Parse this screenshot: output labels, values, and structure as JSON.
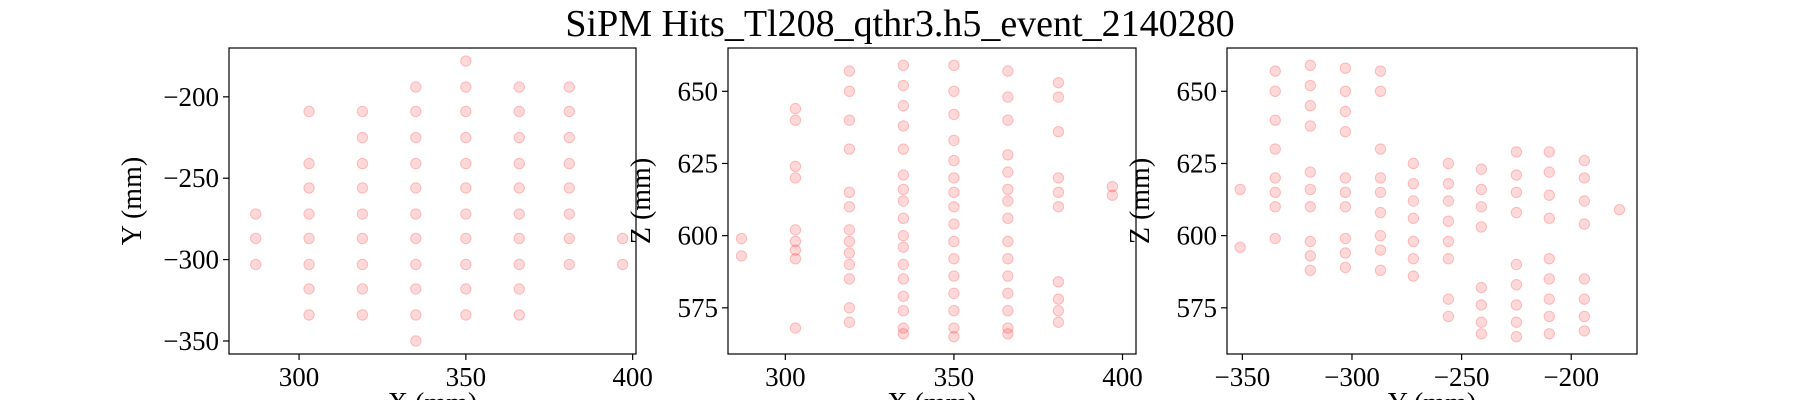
{
  "title": "SiPM Hits_Tl208_qthr3.h5_event_2140280",
  "chart_data": [
    {
      "type": "scatter",
      "xlabel": "X (mm)",
      "ylabel": "Y (mm)",
      "color": "#ff0000",
      "alpha": 0.15,
      "xlim": [
        279,
        401
      ],
      "ylim": [
        -358,
        -170
      ],
      "xticks": [
        300,
        350,
        400
      ],
      "yticks": [
        {
          "value": -200,
          "label": "−200"
        },
        {
          "value": -250,
          "label": "−250"
        },
        {
          "value": -300,
          "label": "−300"
        },
        {
          "value": -350,
          "label": "−350"
        }
      ],
      "x": [
        287,
        287,
        287,
        303,
        303,
        303,
        303,
        303,
        303,
        303,
        303,
        319,
        319,
        319,
        319,
        319,
        319,
        319,
        319,
        319,
        335,
        335,
        335,
        335,
        335,
        335,
        335,
        335,
        335,
        335,
        335,
        350,
        350,
        350,
        350,
        350,
        350,
        350,
        350,
        350,
        350,
        350,
        366,
        366,
        366,
        366,
        366,
        366,
        366,
        366,
        366,
        366,
        381,
        381,
        381,
        381,
        381,
        381,
        381,
        381,
        397,
        397
      ],
      "y": [
        -272,
        -287,
        -303,
        -209,
        -241,
        -256,
        -272,
        -287,
        -303,
        -318,
        -334,
        -209,
        -225,
        -241,
        -256,
        -272,
        -287,
        -303,
        -318,
        -334,
        -194,
        -209,
        -225,
        -241,
        -256,
        -272,
        -287,
        -303,
        -318,
        -334,
        -350,
        -178,
        -194,
        -209,
        -225,
        -241,
        -256,
        -272,
        -287,
        -303,
        -318,
        -334,
        -194,
        -209,
        -225,
        -241,
        -256,
        -272,
        -287,
        -303,
        -318,
        -334,
        -194,
        -209,
        -225,
        -241,
        -256,
        -272,
        -287,
        -303,
        -287,
        -303
      ]
    },
    {
      "type": "scatter",
      "xlabel": "X (mm)",
      "ylabel": "Z (mm)",
      "color": "#ff0000",
      "alpha": 0.15,
      "xlim": [
        283,
        404
      ],
      "ylim": [
        559,
        665
      ],
      "xticks": [
        300,
        350,
        400
      ],
      "yticks": [
        575,
        600,
        625,
        650
      ],
      "x": [
        287,
        287,
        303,
        303,
        303,
        303,
        303,
        303,
        303,
        303,
        303,
        319,
        319,
        319,
        319,
        319,
        319,
        319,
        319,
        319,
        319,
        319,
        319,
        319,
        335,
        335,
        335,
        335,
        335,
        335,
        335,
        335,
        335,
        335,
        335,
        335,
        335,
        335,
        335,
        335,
        335,
        350,
        350,
        350,
        350,
        350,
        350,
        350,
        350,
        350,
        350,
        350,
        350,
        350,
        350,
        350,
        350,
        366,
        366,
        366,
        366,
        366,
        366,
        366,
        366,
        366,
        366,
        366,
        366,
        366,
        366,
        366,
        381,
        381,
        381,
        381,
        381,
        381,
        381,
        381,
        381,
        381,
        397,
        397
      ],
      "y": [
        599,
        593,
        644,
        640,
        624,
        620,
        602,
        598,
        595,
        592,
        568,
        657,
        650,
        640,
        630,
        615,
        610,
        602,
        598,
        594,
        590,
        585,
        575,
        570,
        659,
        652,
        645,
        638,
        630,
        621,
        616,
        612,
        606,
        600,
        596,
        590,
        585,
        579,
        574,
        568,
        566,
        659,
        650,
        642,
        633,
        626,
        620,
        615,
        610,
        604,
        598,
        592,
        586,
        580,
        574,
        568,
        565,
        657,
        648,
        640,
        628,
        622,
        616,
        612,
        606,
        598,
        592,
        586,
        580,
        574,
        568,
        566,
        653,
        648,
        636,
        620,
        615,
        610,
        584,
        578,
        574,
        570,
        617,
        614
      ]
    },
    {
      "type": "scatter",
      "xlabel": "Y (mm)",
      "ylabel": "Z (mm)",
      "color": "#ff0000",
      "alpha": 0.15,
      "xlim": [
        -357,
        -170
      ],
      "ylim": [
        559,
        665
      ],
      "xticks": [
        {
          "value": -350,
          "label": "−350"
        },
        {
          "value": -300,
          "label": "−300"
        },
        {
          "value": -250,
          "label": "−250"
        },
        {
          "value": -200,
          "label": "−200"
        }
      ],
      "yticks": [
        575,
        600,
        625,
        650
      ],
      "x": [
        -351,
        -351,
        -335,
        -335,
        -335,
        -335,
        -335,
        -335,
        -335,
        -335,
        -319,
        -319,
        -319,
        -319,
        -319,
        -319,
        -319,
        -319,
        -319,
        -319,
        -303,
        -303,
        -303,
        -303,
        -303,
        -303,
        -303,
        -303,
        -303,
        -303,
        -287,
        -287,
        -287,
        -287,
        -287,
        -287,
        -287,
        -287,
        -287,
        -272,
        -272,
        -272,
        -272,
        -272,
        -272,
        -272,
        -256,
        -256,
        -256,
        -256,
        -256,
        -256,
        -256,
        -256,
        -241,
        -241,
        -241,
        -241,
        -241,
        -241,
        -241,
        -241,
        -225,
        -225,
        -225,
        -225,
        -225,
        -225,
        -225,
        -225,
        -225,
        -210,
        -210,
        -210,
        -210,
        -210,
        -210,
        -210,
        -210,
        -210,
        -194,
        -194,
        -194,
        -194,
        -194,
        -194,
        -194,
        -194,
        -178
      ],
      "y": [
        616,
        596,
        657,
        650,
        640,
        630,
        620,
        615,
        610,
        599,
        659,
        652,
        645,
        638,
        622,
        616,
        610,
        598,
        593,
        588,
        658,
        650,
        643,
        636,
        620,
        615,
        610,
        599,
        594,
        589,
        657,
        650,
        630,
        620,
        615,
        608,
        600,
        595,
        588,
        625,
        618,
        612,
        606,
        598,
        592,
        586,
        625,
        618,
        612,
        605,
        598,
        592,
        578,
        572,
        623,
        616,
        610,
        603,
        582,
        576,
        570,
        566,
        629,
        621,
        615,
        608,
        590,
        583,
        576,
        570,
        565,
        629,
        622,
        614,
        606,
        592,
        585,
        578,
        572,
        566,
        626,
        620,
        612,
        604,
        585,
        578,
        572,
        567,
        609
      ]
    }
  ]
}
